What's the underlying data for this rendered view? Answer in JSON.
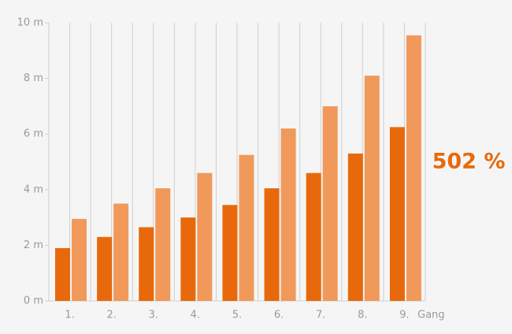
{
  "chart_data": {
    "type": "bar",
    "categories": [
      "1.",
      "2.",
      "3.",
      "4.",
      "5.",
      "6.",
      "7.",
      "8.",
      "9."
    ],
    "xlabel": "Gang",
    "series": [
      {
        "color": "#e8690b",
        "values": [
          1.9,
          2.3,
          2.65,
          3.0,
          3.45,
          4.05,
          4.6,
          5.3,
          6.25
        ]
      },
      {
        "color": "#f0995a",
        "values": [
          2.95,
          3.5,
          4.05,
          4.6,
          5.25,
          6.2,
          7.0,
          8.1,
          9.55
        ]
      }
    ],
    "ylim": [
      0,
      10
    ],
    "yticks": [
      {
        "value": 0,
        "label": "0 m"
      },
      {
        "value": 2,
        "label": "2 m"
      },
      {
        "value": 4,
        "label": "4 m"
      },
      {
        "value": 6,
        "label": "6 m"
      },
      {
        "value": 8,
        "label": "8 m"
      },
      {
        "value": 10,
        "label": "10 m"
      }
    ],
    "grid": true,
    "annotation": "502 %"
  }
}
